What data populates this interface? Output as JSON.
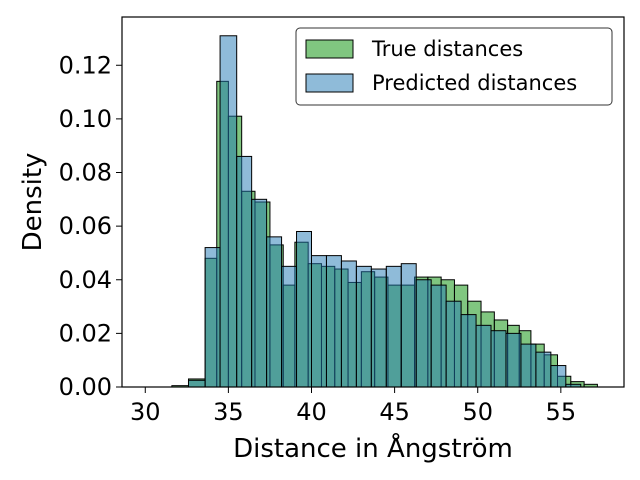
{
  "chart_data": {
    "type": "histogram",
    "xlabel": "Distance in Ångström",
    "ylabel": "Density",
    "xlim": [
      28.6,
      58.8
    ],
    "ylim": [
      0,
      0.138
    ],
    "x_ticks": [
      30,
      35,
      40,
      45,
      50,
      55
    ],
    "y_ticks": [
      0.0,
      0.02,
      0.04,
      0.06,
      0.08,
      0.1,
      0.12
    ],
    "y_tick_labels": [
      "0.00",
      "0.02",
      "0.04",
      "0.06",
      "0.08",
      "0.10",
      "0.12"
    ],
    "grid": false,
    "legend_position": "top-right",
    "series": [
      {
        "name": "True distances",
        "color": "#2ca02c",
        "opacity": 0.6,
        "bin_edges": [
          31.6,
          32.6,
          33.6,
          34.3,
          35.0,
          35.8,
          36.6,
          37.5,
          38.3,
          39.0,
          39.8,
          40.6,
          41.4,
          42.2,
          43.0,
          43.8,
          44.6,
          45.4,
          46.2,
          47.0,
          47.8,
          48.6,
          49.4,
          50.2,
          51.0,
          51.8,
          52.5,
          53.2,
          54.0,
          54.8,
          55.6,
          56.4,
          57.2,
          57.9
        ],
        "values": [
          0.0005,
          0.003,
          0.048,
          0.114,
          0.101,
          0.073,
          0.069,
          0.053,
          0.038,
          0.054,
          0.046,
          0.045,
          0.044,
          0.039,
          0.043,
          0.041,
          0.038,
          0.038,
          0.041,
          0.041,
          0.04,
          0.038,
          0.032,
          0.028,
          0.025,
          0.023,
          0.021,
          0.016,
          0.012,
          0.004,
          0.002,
          0.001,
          0.0
        ]
      },
      {
        "name": "Predicted distances",
        "color": "#1f77b4",
        "opacity": 0.5,
        "bin_edges": [
          32.6,
          33.6,
          34.5,
          35.5,
          36.4,
          37.3,
          38.2,
          39.1,
          40.0,
          40.9,
          41.8,
          42.7,
          43.6,
          44.5,
          45.4,
          46.3,
          47.2,
          48.1,
          49.0,
          49.9,
          50.8,
          51.7,
          52.6,
          53.5,
          54.4,
          55.3,
          56.2
        ],
        "values": [
          0.0025,
          0.052,
          0.131,
          0.086,
          0.07,
          0.056,
          0.045,
          0.058,
          0.049,
          0.049,
          0.047,
          0.045,
          0.044,
          0.045,
          0.046,
          0.04,
          0.038,
          0.032,
          0.027,
          0.023,
          0.021,
          0.02,
          0.016,
          0.013,
          0.008,
          0.001
        ]
      }
    ]
  }
}
